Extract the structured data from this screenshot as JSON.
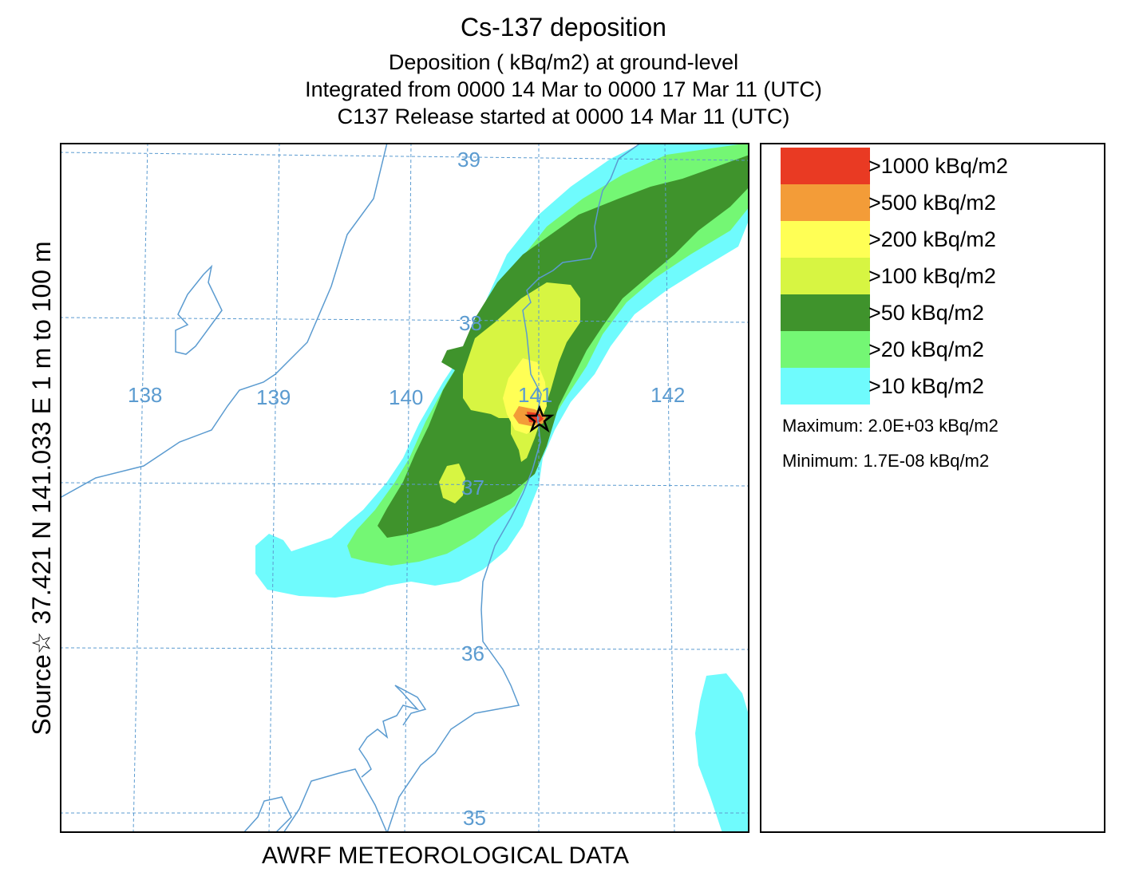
{
  "title": "Cs-137 deposition",
  "subtitle_lines": [
    "Deposition  ( kBq/m2) at ground-level",
    "Integrated from 0000 14 Mar to 0000 17 Mar 11 (UTC)",
    "C137 Release started at 0000 14 Mar 11 (UTC)"
  ],
  "side_label": "Source☆  37.421  N 141.033  E        1 m to   100 m",
  "footer": "AWRF METEOROLOGICAL DATA",
  "map": {
    "lon_labels": [
      "138",
      "139",
      "140",
      "141",
      "142"
    ],
    "lat_labels": [
      "39",
      "38",
      "37",
      "36",
      "35"
    ],
    "source_lat": 37.421,
    "source_lon": 141.033
  },
  "legend": {
    "items": [
      {
        "label": ">1000  kBq/m2",
        "color": "#e93a23"
      },
      {
        "label": ">500  kBq/m2",
        "color": "#f39c38"
      },
      {
        "label": ">200  kBq/m2",
        "color": "#ffff55"
      },
      {
        "label": ">100  kBq/m2",
        "color": "#d7f542"
      },
      {
        "label": ">50  kBq/m2",
        "color": "#3f932c"
      },
      {
        "label": ">20  kBq/m2",
        "color": "#74f774"
      },
      {
        "label": ">10  kBq/m2",
        "color": "#6ffbfd"
      }
    ],
    "maximum": "Maximum: 2.0E+03  kBq/m2",
    "minimum": "Minimum: 1.7E-08  kBq/m2"
  },
  "colors": {
    "grid": "#5b9bd0",
    "coast": "#5b9bd0",
    "label": "#5b9bd0"
  }
}
